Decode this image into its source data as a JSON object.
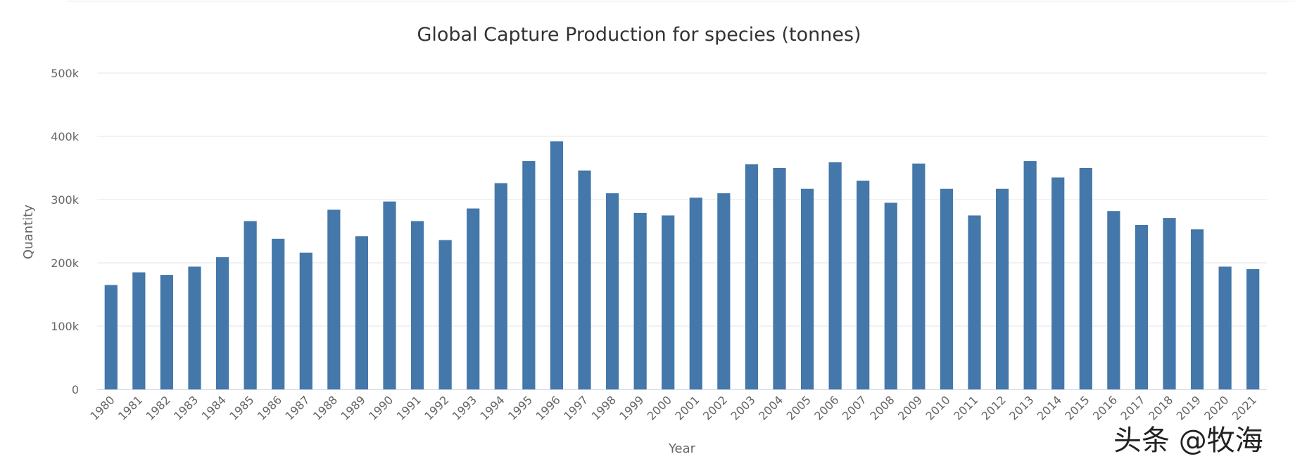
{
  "chart_data": {
    "type": "bar",
    "title": "Global Capture Production for species (tonnes)",
    "xlabel": "Year",
    "ylabel": "Quantity",
    "ylim": [
      0,
      500000
    ],
    "yticks": [
      "0",
      "100k",
      "200k",
      "300k",
      "400k",
      "500k"
    ],
    "grid": true,
    "bar_color": "#4477AA",
    "categories": [
      "1980",
      "1981",
      "1982",
      "1983",
      "1984",
      "1985",
      "1986",
      "1987",
      "1988",
      "1989",
      "1990",
      "1991",
      "1992",
      "1993",
      "1994",
      "1995",
      "1996",
      "1997",
      "1998",
      "1999",
      "2000",
      "2001",
      "2002",
      "2003",
      "2004",
      "2005",
      "2006",
      "2007",
      "2008",
      "2009",
      "2010",
      "2011",
      "2012",
      "2013",
      "2014",
      "2015",
      "2016",
      "2017",
      "2018",
      "2019",
      "2020",
      "2021"
    ],
    "values": [
      165000,
      185000,
      181000,
      194000,
      209000,
      266000,
      238000,
      216000,
      284000,
      242000,
      297000,
      266000,
      236000,
      286000,
      326000,
      361000,
      392000,
      346000,
      310000,
      279000,
      275000,
      303000,
      310000,
      356000,
      350000,
      317000,
      359000,
      330000,
      295000,
      357000,
      317000,
      275000,
      317000,
      361000,
      335000,
      350000,
      282000,
      260000,
      271000,
      253000,
      194000,
      190000
    ]
  },
  "watermark": "头条 @牧海"
}
